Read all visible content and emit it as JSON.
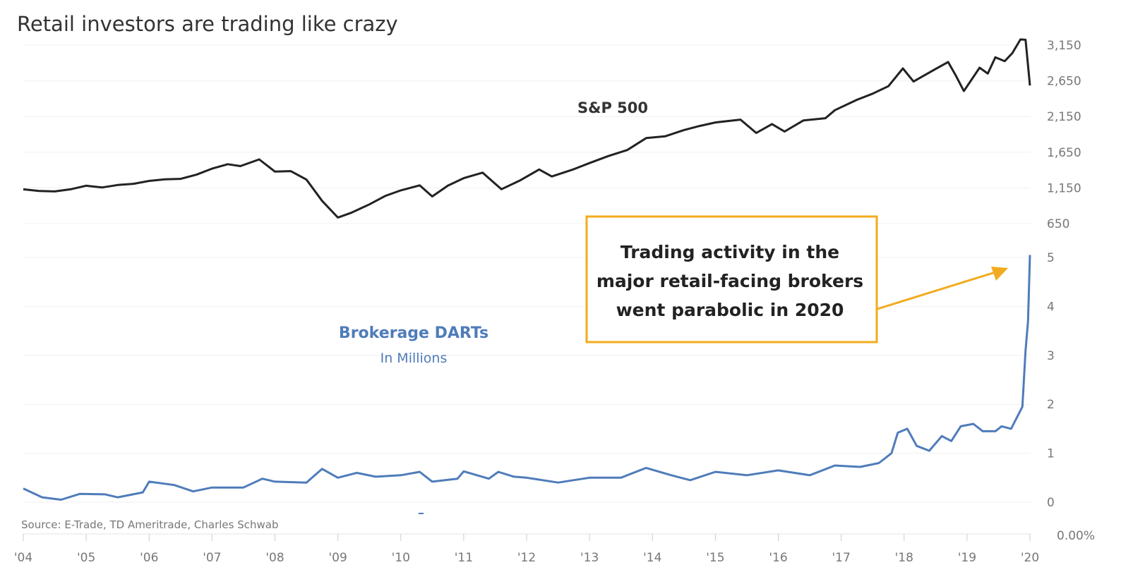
{
  "chart_data": {
    "type": "line",
    "title": "Retail investors are trading like crazy",
    "source": "Source:  E-Trade, TD Ameritrade,  Charles Schwab",
    "x_ticks": [
      "'04",
      "'05",
      "'06",
      "'07",
      "'08",
      "'09",
      "'10",
      "'11",
      "'12",
      "'13",
      "'14",
      "'15",
      "'16",
      "'17",
      "'18",
      "'19",
      "'20"
    ],
    "xlim": [
      2004,
      2020
    ],
    "spx_axis": {
      "ticks": [
        "3,150",
        "2,650",
        "2,150",
        "1,650",
        "1,150",
        "650"
      ],
      "values": [
        3150,
        2650,
        2150,
        1650,
        1150,
        650
      ],
      "ylim": [
        650,
        3150
      ]
    },
    "darts_axis": {
      "ticks": [
        "5",
        "4",
        "3",
        "2",
        "1",
        "0"
      ],
      "values": [
        5,
        4,
        3,
        2,
        1,
        0
      ],
      "ylim": [
        0,
        5
      ]
    },
    "extra_tick": "0.00%",
    "series": [
      {
        "name": "S&P 500",
        "label": "S&P 500",
        "color": "#222222",
        "x": [
          2004.0,
          2004.25,
          2004.5,
          2004.75,
          2005.0,
          2005.25,
          2005.5,
          2005.75,
          2006.0,
          2006.25,
          2006.5,
          2006.75,
          2007.0,
          2007.25,
          2007.45,
          2007.75,
          2008.0,
          2008.25,
          2008.5,
          2008.75,
          2009.0,
          2009.2,
          2009.5,
          2009.75,
          2010.0,
          2010.3,
          2010.5,
          2010.75,
          2011.0,
          2011.3,
          2011.6,
          2011.9,
          2012.2,
          2012.4,
          2012.75,
          2013.0,
          2013.3,
          2013.6,
          2013.9,
          2014.2,
          2014.5,
          2014.75,
          2015.0,
          2015.4,
          2015.65,
          2015.9,
          2016.1,
          2016.4,
          2016.75,
          2016.9,
          2017.25,
          2017.5,
          2017.75,
          2017.98,
          2018.15,
          2018.5,
          2018.7,
          2018.83,
          2018.95,
          2019.2,
          2019.33,
          2019.45,
          2019.6,
          2019.72,
          2019.85,
          2019.93,
          2020.0
        ],
        "values": [
          1130,
          1107,
          1101,
          1130,
          1181,
          1156,
          1191,
          1207,
          1248,
          1270,
          1276,
          1335,
          1420,
          1482,
          1455,
          1549,
          1378,
          1385,
          1267,
          968,
          735,
          797,
          919,
          1036,
          1115,
          1186,
          1030,
          1183,
          1286,
          1363,
          1131,
          1257,
          1408,
          1310,
          1412,
          1498,
          1597,
          1681,
          1848,
          1872,
          1960,
          2018,
          2067,
          2107,
          1920,
          2044,
          1940,
          2096,
          2126,
          2239,
          2384,
          2470,
          2575,
          2824,
          2640,
          2816,
          2914,
          2711,
          2507,
          2834,
          2752,
          2980,
          2926,
          3037,
          3230,
          3225,
          2585
        ]
      },
      {
        "name": "Brokerage DARTs",
        "label": "Brokerage DARTs",
        "sublabel": "In Millions",
        "color": "#4f7cba",
        "x": [
          2004.0,
          2004.3,
          2004.6,
          2004.9,
          2005.3,
          2005.5,
          2005.9,
          2006.0,
          2006.4,
          2006.7,
          2007.0,
          2007.5,
          2007.8,
          2008.0,
          2008.5,
          2008.75,
          2009.0,
          2009.3,
          2009.6,
          2010.0,
          2010.3,
          2010.5,
          2010.9,
          2011.0,
          2011.4,
          2011.55,
          2011.8,
          2012.0,
          2012.5,
          2013.0,
          2013.5,
          2013.9,
          2014.3,
          2014.6,
          2015.0,
          2015.5,
          2016.0,
          2016.5,
          2016.9,
          2017.3,
          2017.6,
          2017.8,
          2017.9,
          2018.05,
          2018.2,
          2018.4,
          2018.6,
          2018.75,
          2018.9,
          2019.1,
          2019.25,
          2019.45,
          2019.55,
          2019.7,
          2019.88,
          2019.93,
          2019.97,
          2020.0
        ],
        "values": [
          0.28,
          0.1,
          0.05,
          0.17,
          0.16,
          0.1,
          0.2,
          0.42,
          0.35,
          0.22,
          0.3,
          0.3,
          0.48,
          0.42,
          0.4,
          0.68,
          0.5,
          0.6,
          0.52,
          0.55,
          0.62,
          0.42,
          0.48,
          0.63,
          0.48,
          0.62,
          0.52,
          0.5,
          0.4,
          0.5,
          0.5,
          0.7,
          0.55,
          0.45,
          0.62,
          0.55,
          0.65,
          0.55,
          0.75,
          0.72,
          0.8,
          1.0,
          1.42,
          1.5,
          1.15,
          1.05,
          1.35,
          1.25,
          1.55,
          1.6,
          1.45,
          1.45,
          1.55,
          1.5,
          1.95,
          3.1,
          3.7,
          5.05
        ]
      }
    ],
    "annotation": {
      "lines": [
        "Trading activity in the",
        "major retail-facing brokers",
        "went parabolic in 2020"
      ],
      "color": "#f2ab1e"
    }
  }
}
